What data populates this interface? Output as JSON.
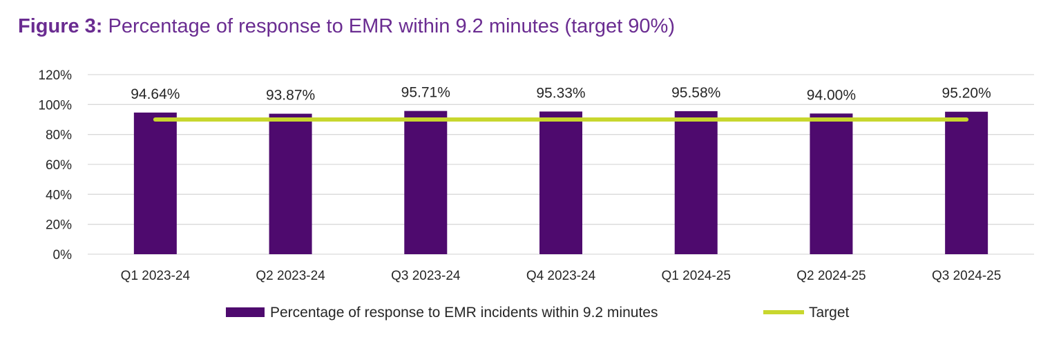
{
  "title": {
    "prefix": "Figure 3:",
    "text": " Percentage of response to EMR within 9.2 minutes (target 90%)"
  },
  "colors": {
    "title": "#6a2c91",
    "bar": "#4e0a6e",
    "target": "#c8d72e",
    "grid": "#d9d9d9",
    "text": "#262626"
  },
  "chart_data": {
    "type": "bar",
    "categories": [
      "Q1 2023-24",
      "Q2 2023-24",
      "Q3 2023-24",
      "Q4 2023-24",
      "Q1 2024-25",
      "Q2 2024-25",
      "Q3 2024-25"
    ],
    "series": [
      {
        "name": "Percentage of response to EMR incidents within 9.2 minutes",
        "type": "bar",
        "values": [
          94.64,
          93.87,
          95.71,
          95.33,
          95.58,
          94.0,
          95.2
        ],
        "labels": [
          "94.64%",
          "93.87%",
          "95.71%",
          "95.33%",
          "95.58%",
          "94.00%",
          "95.20%"
        ]
      },
      {
        "name": "Target",
        "type": "line",
        "values": [
          90,
          90,
          90,
          90,
          90,
          90,
          90
        ]
      }
    ],
    "ylim": [
      0,
      120
    ],
    "yticks": [
      0,
      20,
      40,
      60,
      80,
      100,
      120
    ],
    "ytick_labels": [
      "0%",
      "20%",
      "40%",
      "60%",
      "80%",
      "100%",
      "120%"
    ],
    "grid": true,
    "legend_position": "bottom"
  }
}
